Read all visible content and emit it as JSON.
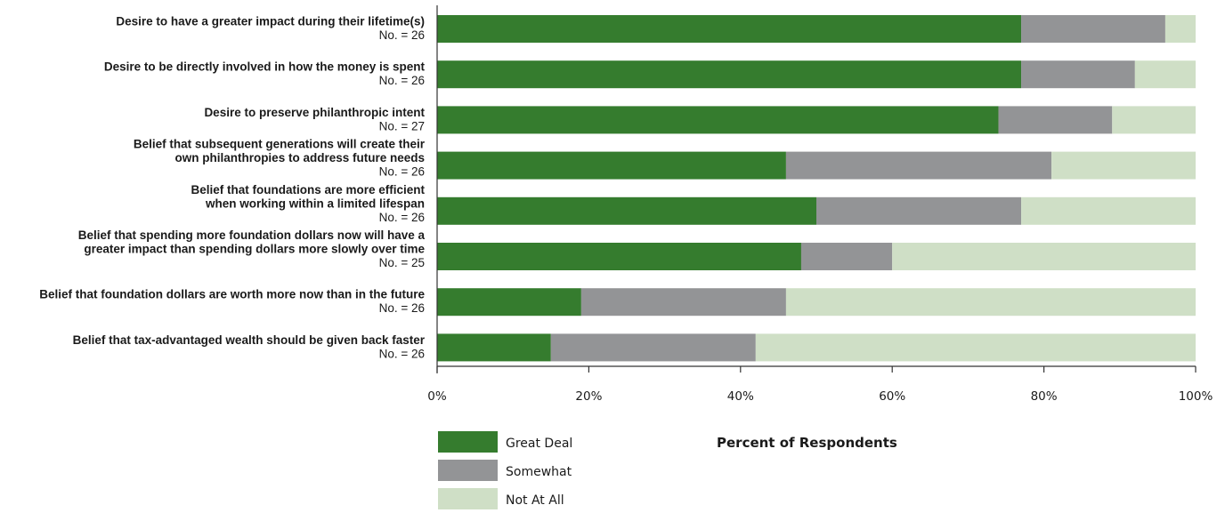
{
  "chart_data": {
    "type": "bar",
    "orientation": "horizontal",
    "stacked": true,
    "percent_stacked": true,
    "categories": [
      {
        "label": [
          "Desire to have a greater impact during their lifetime(s)"
        ],
        "count": "No. = 26"
      },
      {
        "label": [
          "Desire to be directly involved in how the money is spent"
        ],
        "count": "No. = 26"
      },
      {
        "label": [
          "Desire to preserve philanthropic intent"
        ],
        "count": "No. = 27"
      },
      {
        "label": [
          "Belief that subsequent generations will create their",
          "own philanthropies to address future needs"
        ],
        "count": "No. = 26"
      },
      {
        "label": [
          "Belief that foundations are more efficient",
          "when working within a limited lifespan"
        ],
        "count": "No. = 26"
      },
      {
        "label": [
          "Belief that spending more foundation dollars now will have a",
          "greater impact than spending dollars more slowly over time"
        ],
        "count": "No. = 25"
      },
      {
        "label": [
          "Belief that foundation dollars are worth more now than in the future"
        ],
        "count": "No. = 26"
      },
      {
        "label": [
          "Belief that tax-advantaged wealth should be given back faster"
        ],
        "count": "No. = 26"
      }
    ],
    "series": [
      {
        "name": "Great Deal",
        "color": "#357c2e",
        "values": [
          77,
          77,
          74,
          46,
          50,
          48,
          19,
          15
        ]
      },
      {
        "name": "Somewhat",
        "color": "#939496",
        "values": [
          19,
          15,
          15,
          35,
          27,
          12,
          27,
          27
        ]
      },
      {
        "name": "Not At All",
        "color": "#cfdfc6",
        "values": [
          4,
          8,
          11,
          19,
          23,
          40,
          54,
          58
        ]
      }
    ],
    "xlabel": "Percent of Respondents",
    "xlim": [
      0,
      100
    ],
    "xticks": [
      "0%",
      "20%",
      "40%",
      "60%",
      "80%",
      "100%"
    ],
    "legend_position": "bottom-left",
    "grid": false
  }
}
